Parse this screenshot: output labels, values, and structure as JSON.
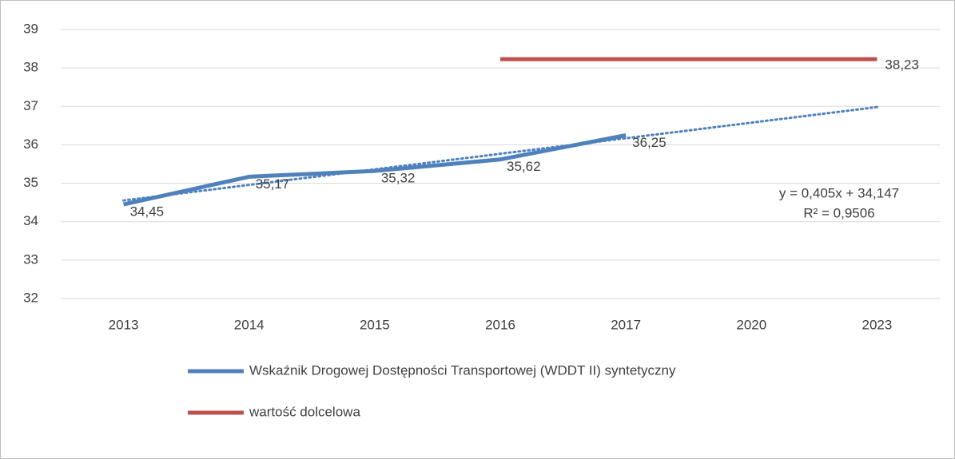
{
  "chart_data": {
    "type": "line",
    "categories": [
      "2013",
      "2014",
      "2015",
      "2016",
      "2017",
      "2020",
      "2023"
    ],
    "series": [
      {
        "name": "Wskaźnik Drogowej Dostępności Transportowej (WDDT II) syntetyczny",
        "color": "#4f81bd",
        "values": [
          34.45,
          35.17,
          35.32,
          35.62,
          36.25,
          null,
          null
        ],
        "value_labels": [
          "34,45",
          "35,17",
          "35,32",
          "35,62",
          "36,25",
          null,
          null
        ]
      },
      {
        "name": "wartość dolcelowa",
        "color": "#c0504d",
        "values": [
          null,
          null,
          null,
          38.23,
          38.23,
          38.23,
          38.23
        ],
        "value_labels": [
          null,
          null,
          null,
          null,
          null,
          null,
          "38,23"
        ]
      }
    ],
    "trendline": {
      "slope": 0.405,
      "intercept": 34.147,
      "color": "#4f81bd",
      "equation": "y = 0,405x + 34,147",
      "r2": "R² = 0,9506"
    },
    "ylim": [
      32,
      39
    ],
    "yticks": [
      32,
      33,
      34,
      35,
      36,
      37,
      38,
      39
    ],
    "grid": true,
    "legend": "bottom"
  }
}
